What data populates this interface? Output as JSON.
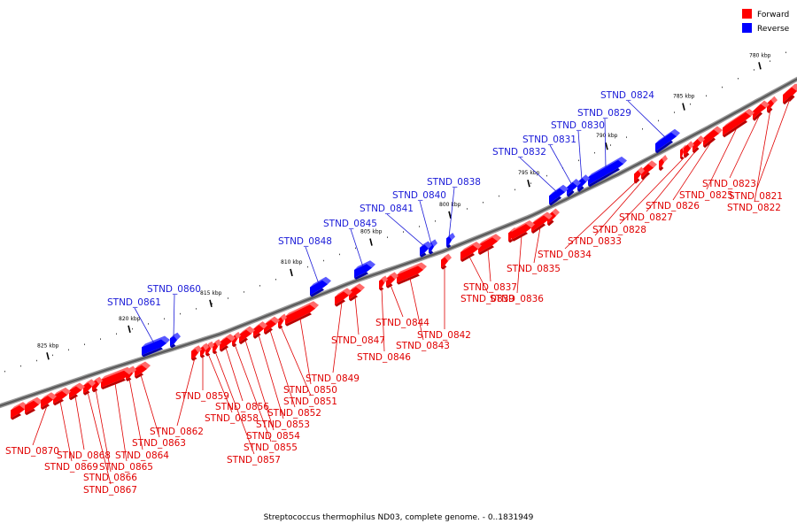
{
  "legend": [
    {
      "label": "Forward",
      "color": "#ff0000"
    },
    {
      "label": "Reverse",
      "color": "#0000ff"
    }
  ],
  "caption": "Streptococcus thermophilus ND03, complete genome. - 0..1831949",
  "ticks": [
    {
      "label": "780 kbp",
      "pos": 780
    },
    {
      "label": "785 kbp",
      "pos": 785
    },
    {
      "label": "790 kbp",
      "pos": 790
    },
    {
      "label": "795 kbp",
      "pos": 795
    },
    {
      "label": "800 kbp",
      "pos": 800
    },
    {
      "label": "805 kbp",
      "pos": 805
    },
    {
      "label": "810 kbp",
      "pos": 810
    },
    {
      "label": "815 kbp",
      "pos": 815
    },
    {
      "label": "820 kbp",
      "pos": 820
    },
    {
      "label": "825 kbp",
      "pos": 825
    }
  ],
  "forward_genes": [
    {
      "name": "STND_0821"
    },
    {
      "name": "STND_0822"
    },
    {
      "name": "STND_0823"
    },
    {
      "name": "STND_0825"
    },
    {
      "name": "STND_0826"
    },
    {
      "name": "STND_0827"
    },
    {
      "name": "STND_0828"
    },
    {
      "name": "STND_0833"
    },
    {
      "name": "STND_0834"
    },
    {
      "name": "STND_0835"
    },
    {
      "name": "STND_0836"
    },
    {
      "name": "STND_0837"
    },
    {
      "name": "STND_0839"
    },
    {
      "name": "STND_0842"
    },
    {
      "name": "STND_0843"
    },
    {
      "name": "STND_0844"
    },
    {
      "name": "STND_0846"
    },
    {
      "name": "STND_0847"
    },
    {
      "name": "STND_0849"
    },
    {
      "name": "STND_0850"
    },
    {
      "name": "STND_0851"
    },
    {
      "name": "STND_0852"
    },
    {
      "name": "STND_0853"
    },
    {
      "name": "STND_0854"
    },
    {
      "name": "STND_0855"
    },
    {
      "name": "STND_0856"
    },
    {
      "name": "STND_0857"
    },
    {
      "name": "STND_0858"
    },
    {
      "name": "STND_0859"
    },
    {
      "name": "STND_0862"
    },
    {
      "name": "STND_0863"
    },
    {
      "name": "STND_0864"
    },
    {
      "name": "STND_0865"
    },
    {
      "name": "STND_0866"
    },
    {
      "name": "STND_0867"
    },
    {
      "name": "STND_0868"
    },
    {
      "name": "STND_0869"
    },
    {
      "name": "STND_0870"
    }
  ],
  "reverse_genes": [
    {
      "name": "STND_0824"
    },
    {
      "name": "STND_0829"
    },
    {
      "name": "STND_0830"
    },
    {
      "name": "STND_0831"
    },
    {
      "name": "STND_0832"
    },
    {
      "name": "STND_0838"
    },
    {
      "name": "STND_0840"
    },
    {
      "name": "STND_0841"
    },
    {
      "name": "STND_0845"
    },
    {
      "name": "STND_0848"
    },
    {
      "name": "STND_0860"
    },
    {
      "name": "STND_0861"
    }
  ]
}
